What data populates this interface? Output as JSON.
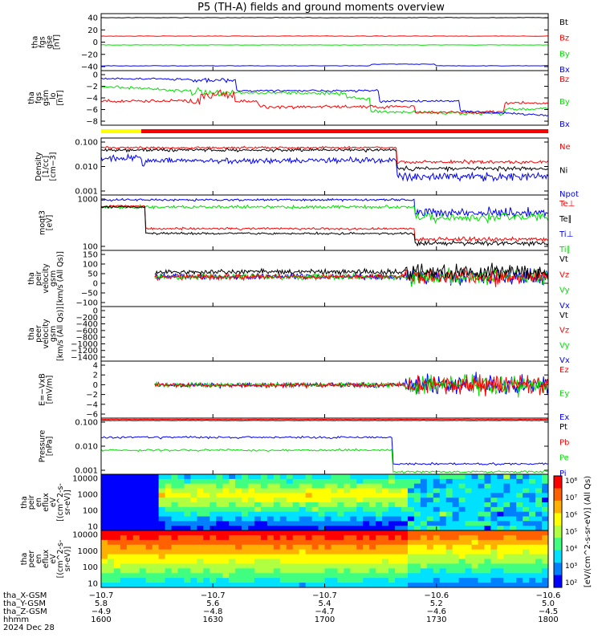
{
  "title": "P5 (TH-A) fields and ground moments overview",
  "colors": {
    "black": "#000000",
    "red": "#ff0000",
    "green": "#00e000",
    "blue": "#0000ff",
    "yellow": "#ffff00"
  },
  "chart_data": [
    {
      "type": "line",
      "panel": "fgs_gse",
      "ylabel": [
        "tha",
        "fgs",
        "gse",
        "[nT]"
      ],
      "ylim": [
        -45,
        45
      ],
      "yticks": [
        "40",
        "20",
        "0",
        "−20",
        "−40"
      ],
      "series": [
        {
          "name": "Bt",
          "color": "black",
          "level": 38
        },
        {
          "name": "Bz",
          "color": "red",
          "level": 10
        },
        {
          "name": "By",
          "color": "green",
          "level": -2
        },
        {
          "name": "Bx",
          "color": "blue",
          "level": -36
        }
      ]
    },
    {
      "type": "line",
      "panel": "fgs_gsm",
      "ylabel": [
        "tha",
        "fgs",
        "gsm",
        "_lo",
        "[nT]"
      ],
      "ylim": [
        -9,
        1
      ],
      "yticks": [
        "0",
        "−2",
        "−4",
        "−6",
        "−8"
      ],
      "series": [
        {
          "name": "Bz",
          "color": "red"
        },
        {
          "name": "By",
          "color": "green"
        },
        {
          "name": "Bx",
          "color": "blue"
        }
      ]
    },
    {
      "type": "line",
      "panel": "density",
      "ylabel": [
        "Density",
        "[1/cc]",
        "[cm−3]"
      ],
      "yscale": "log",
      "ylim": [
        0.001,
        1
      ],
      "yticks": [
        "0.100",
        "0.010",
        "0.001"
      ],
      "series": [
        {
          "name": "Ne",
          "color": "red"
        },
        {
          "name": "Ni",
          "color": "black"
        },
        {
          "name": "Npot",
          "color": "blue"
        }
      ]
    },
    {
      "type": "line",
      "panel": "temperature",
      "ylabel": [
        "moqt3",
        "[eV]"
      ],
      "yscale": "log",
      "ylim": [
        40,
        2000
      ],
      "yticks": [
        "1000",
        "100"
      ],
      "series": [
        {
          "name": "Te⊥",
          "color": "red"
        },
        {
          "name": "Te∥",
          "color": "black"
        },
        {
          "name": "Ti⊥",
          "color": "blue"
        },
        {
          "name": "Ti∥",
          "color": "green"
        }
      ]
    },
    {
      "type": "line",
      "panel": "peir_velocity",
      "ylabel": [
        "tha",
        "peir",
        "velocity",
        "gsm",
        "[km/s (All Qs)]"
      ],
      "ylim": [
        -150,
        150
      ],
      "yticks": [
        "150",
        "100",
        "50",
        "0",
        "−50",
        "−100"
      ],
      "series": [
        {
          "name": "Vt",
          "color": "black"
        },
        {
          "name": "Vz",
          "color": "red"
        },
        {
          "name": "Vy",
          "color": "green"
        },
        {
          "name": "Vx",
          "color": "blue"
        }
      ]
    },
    {
      "type": "line",
      "panel": "peer_velocity",
      "ylabel": [
        "tha",
        "peer",
        "velocity",
        "gsm",
        "[km/s (All Qs)]"
      ],
      "ylim": [
        -1500,
        50
      ],
      "yticks": [
        "0",
        "−200",
        "−400",
        "−600",
        "−800",
        "−1000",
        "−1200",
        "−1400"
      ],
      "series": [
        {
          "name": "Vt",
          "color": "black"
        },
        {
          "name": "Vz",
          "color": "red"
        },
        {
          "name": "Vy",
          "color": "green"
        },
        {
          "name": "Vx",
          "color": "blue"
        }
      ]
    },
    {
      "type": "line",
      "panel": "efield",
      "ylabel": [
        "E=−VxB",
        "[mV/m]"
      ],
      "ylim": [
        -6.5,
        4.5
      ],
      "yticks": [
        "4",
        "2",
        "0",
        "−2",
        "−4",
        "−6"
      ],
      "series": [
        {
          "name": "Ez",
          "color": "red"
        },
        {
          "name": "Ey",
          "color": "green"
        },
        {
          "name": "Ex",
          "color": "blue"
        }
      ]
    },
    {
      "type": "line",
      "panel": "pressure",
      "ylabel": [
        "Pressure",
        "[nPa]"
      ],
      "yscale": "log",
      "ylim": [
        0.0004,
        0.5
      ],
      "yticks": [
        "0.100",
        "0.010",
        "0.001"
      ],
      "series": [
        {
          "name": "Pt",
          "color": "black"
        },
        {
          "name": "Pb",
          "color": "red"
        },
        {
          "name": "Pe",
          "color": "green"
        },
        {
          "name": "Pi",
          "color": "blue"
        }
      ]
    },
    {
      "type": "heatmap",
      "panel": "peir_en_eflux",
      "ylabel": [
        "tha",
        "peir",
        "en",
        "eflux",
        "eV",
        "[(cm^2-s-",
        "sr-eV)]"
      ],
      "yscale": "log",
      "yticks": [
        "10000",
        "1000",
        "100",
        "10"
      ]
    },
    {
      "type": "heatmap",
      "panel": "peer_en_eflux",
      "ylabel": [
        "tha",
        "peer",
        "en",
        "eflux",
        "eV",
        "[(cm^2-s-",
        "sr-eV)]"
      ],
      "yscale": "log",
      "yticks": [
        "10000",
        "1000",
        "100",
        "10"
      ]
    }
  ],
  "colorbar": {
    "label": "[eV/(cm^2-s-sr-eV)] (All Qs)",
    "ticks": [
      "10⁸",
      "10⁷",
      "10⁶",
      "10⁵",
      "10⁴",
      "10³",
      "10²"
    ]
  },
  "xaxis": {
    "rows": [
      {
        "label": "tha_X-GSM",
        "values": [
          "−10.7",
          "−10.7",
          "−10.7",
          "−10.6",
          "−10.6"
        ]
      },
      {
        "label": "tha_Y-GSM",
        "values": [
          "5.8",
          "5.6",
          "5.4",
          "5.2",
          "5.0"
        ]
      },
      {
        "label": "tha_Z-GSM",
        "values": [
          "−4.9",
          "−4.8",
          "−4.7",
          "−4.6",
          "−4.5"
        ]
      },
      {
        "label": "hhmm",
        "values": [
          "1600",
          "1630",
          "1700",
          "1730",
          "1800"
        ]
      }
    ],
    "date": "2024 Dec 28"
  }
}
